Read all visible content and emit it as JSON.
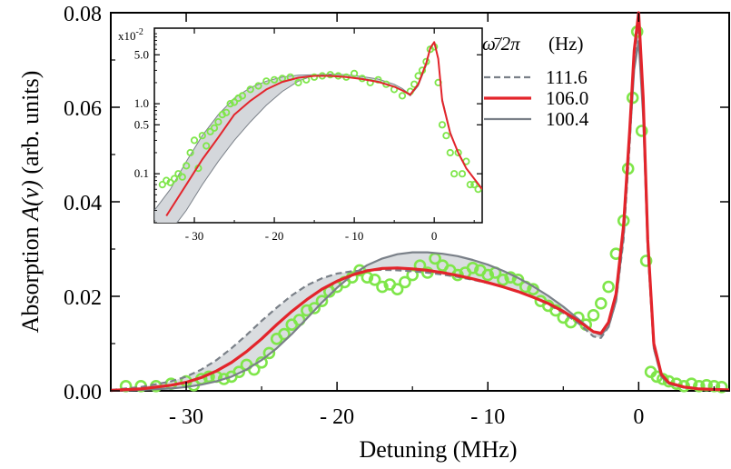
{
  "chart_data": {
    "type": "line",
    "main": {
      "xlabel": "Detuning (MHz)",
      "ylabel_prefix": "Absorption",
      "ylabel_symbol": "A(ν)",
      "ylabel_suffix": "(arb. units)",
      "xlim": [
        -35,
        6
      ],
      "ylim": [
        0,
        0.08
      ],
      "x_ticks": [
        -30,
        -20,
        -10,
        0
      ],
      "x_tick_labels": [
        "- 30",
        "- 20",
        "- 10",
        "0"
      ],
      "y_ticks": [
        0,
        0.02,
        0.04,
        0.06,
        0.08
      ],
      "y_tick_labels": [
        "0.00",
        "0.02",
        "0.04",
        "0.06",
        "0.08"
      ],
      "band_between": [
        "111.6",
        "100.4"
      ],
      "series": [
        {
          "name": "111.6",
          "style": "dashed",
          "color": "#7a8088",
          "x": [
            -35,
            -33,
            -31,
            -30,
            -29,
            -28,
            -27,
            -26,
            -25,
            -24,
            -23,
            -22,
            -21,
            -20,
            -19,
            -18,
            -17,
            -16,
            -15,
            -14,
            -13,
            -12,
            -11,
            -10,
            -9,
            -8,
            -7,
            -6,
            -5,
            -4,
            -3,
            -2.5,
            -2,
            -1.5,
            -1,
            -0.6,
            -0.3,
            0,
            0.3,
            0.6,
            1,
            1.5,
            2,
            3,
            4,
            6
          ],
          "y": [
            0.0002,
            0.0008,
            0.002,
            0.003,
            0.0045,
            0.0065,
            0.009,
            0.0118,
            0.0148,
            0.0176,
            0.0202,
            0.0223,
            0.0238,
            0.0248,
            0.0253,
            0.0255,
            0.0256,
            0.0255,
            0.0253,
            0.025,
            0.0246,
            0.0241,
            0.0235,
            0.0228,
            0.022,
            0.021,
            0.0198,
            0.0183,
            0.0165,
            0.0143,
            0.0115,
            0.0112,
            0.0135,
            0.019,
            0.032,
            0.052,
            0.07,
            0.078,
            0.06,
            0.03,
            0.009,
            0.003,
            0.0015,
            0.0007,
            0.0004,
            0.0002
          ]
        },
        {
          "name": "106.0",
          "style": "solid",
          "color": "#e3242b",
          "x": [
            -35,
            -33,
            -31,
            -30,
            -29,
            -28,
            -27,
            -26,
            -25,
            -24,
            -23,
            -22,
            -21,
            -20,
            -19,
            -18,
            -17,
            -16,
            -15,
            -14,
            -13,
            -12,
            -11,
            -10,
            -9,
            -8,
            -7,
            -6,
            -5,
            -4,
            -3,
            -2.5,
            -2,
            -1.5,
            -1,
            -0.6,
            -0.3,
            0,
            0.3,
            0.6,
            1,
            1.5,
            2,
            3,
            4,
            6
          ],
          "y": [
            0.0001,
            0.0004,
            0.0012,
            0.0018,
            0.0028,
            0.0042,
            0.006,
            0.0083,
            0.011,
            0.014,
            0.0168,
            0.0193,
            0.0215,
            0.0232,
            0.0245,
            0.0254,
            0.0259,
            0.026,
            0.0258,
            0.0255,
            0.025,
            0.0244,
            0.0237,
            0.0229,
            0.022,
            0.021,
            0.0198,
            0.0185,
            0.0168,
            0.0148,
            0.0125,
            0.0122,
            0.0145,
            0.0205,
            0.035,
            0.055,
            0.072,
            0.08,
            0.062,
            0.032,
            0.01,
            0.0035,
            0.0017,
            0.0008,
            0.0004,
            0.0002
          ]
        },
        {
          "name": "100.4",
          "style": "solid",
          "color": "#7a8088",
          "x": [
            -35,
            -33,
            -31,
            -30,
            -29,
            -28,
            -27,
            -26,
            -25,
            -24,
            -23,
            -22,
            -21,
            -20,
            -19,
            -18,
            -17,
            -16,
            -15,
            -14,
            -13,
            -12,
            -11,
            -10,
            -9,
            -8,
            -7,
            -6,
            -5,
            -4,
            -3,
            -2.5,
            -2,
            -1.5,
            -1,
            -0.6,
            -0.3,
            0,
            0.3,
            0.6,
            1,
            1.5,
            2,
            3,
            4,
            6
          ],
          "y": [
            0.0,
            0.0002,
            0.0005,
            0.0008,
            0.0013,
            0.002,
            0.003,
            0.0045,
            0.0065,
            0.009,
            0.012,
            0.0153,
            0.0187,
            0.0218,
            0.0245,
            0.0266,
            0.028,
            0.0289,
            0.0293,
            0.0293,
            0.029,
            0.0285,
            0.0277,
            0.0267,
            0.0254,
            0.0239,
            0.0221,
            0.0201,
            0.0178,
            0.0152,
            0.0125,
            0.0118,
            0.0135,
            0.019,
            0.033,
            0.053,
            0.068,
            0.074,
            0.058,
            0.03,
            0.009,
            0.003,
            0.0015,
            0.0007,
            0.0004,
            0.0002
          ]
        }
      ],
      "data_points": {
        "name": "measured",
        "color": "#7fe64a",
        "x": [
          -34,
          -33,
          -32,
          -31,
          -30,
          -29.5,
          -29,
          -28.5,
          -28,
          -27.5,
          -27,
          -26.5,
          -26,
          -25.5,
          -25,
          -24.5,
          -24,
          -23.5,
          -23,
          -22.5,
          -22,
          -21.5,
          -21,
          -20.5,
          -20,
          -19.5,
          -19,
          -18.5,
          -18,
          -17.5,
          -17,
          -16.5,
          -16,
          -15.5,
          -15,
          -14.5,
          -14,
          -13.5,
          -13,
          -12.5,
          -12,
          -11.5,
          -11,
          -10.5,
          -10,
          -9.5,
          -9,
          -8.5,
          -8,
          -7.5,
          -7,
          -6.5,
          -6,
          -5.5,
          -5,
          -4.5,
          -4,
          -3.5,
          -3,
          -2.5,
          -2,
          -1.5,
          -1,
          -0.7,
          -0.4,
          -0.1,
          0.2,
          0.5,
          0.8,
          1.2,
          1.6,
          2,
          2.5,
          3,
          3.5,
          4,
          4.5,
          5,
          5.5
        ],
        "y": [
          0.001,
          0.001,
          0.001,
          0.0015,
          0.002,
          0.0012,
          0.0025,
          0.003,
          0.003,
          0.0025,
          0.003,
          0.004,
          0.0055,
          0.0045,
          0.006,
          0.008,
          0.011,
          0.012,
          0.014,
          0.015,
          0.017,
          0.0175,
          0.019,
          0.021,
          0.022,
          0.023,
          0.024,
          0.0255,
          0.024,
          0.0235,
          0.022,
          0.0225,
          0.0215,
          0.023,
          0.0245,
          0.0265,
          0.025,
          0.028,
          0.0265,
          0.0255,
          0.0245,
          0.025,
          0.026,
          0.0255,
          0.0245,
          0.025,
          0.0235,
          0.024,
          0.0235,
          0.022,
          0.0215,
          0.019,
          0.018,
          0.017,
          0.0155,
          0.0145,
          0.0155,
          0.014,
          0.016,
          0.0185,
          0.022,
          0.029,
          0.036,
          0.047,
          0.062,
          0.076,
          0.055,
          0.0275,
          0.004,
          0.003,
          0.0025,
          0.002,
          0.0015,
          0.001,
          0.0015,
          0.001,
          0.0012,
          0.001,
          0.0008
        ]
      }
    },
    "inset": {
      "multiplier_label": "x10",
      "multiplier_exp": "-2",
      "yscale": "log",
      "xlim": [
        -35,
        6
      ],
      "ylim": [
        0.02,
        12
      ],
      "x_ticks": [
        -30,
        -20,
        -10,
        0
      ],
      "x_tick_labels": [
        "- 30",
        "- 20",
        "- 10",
        "0"
      ],
      "y_ticks": [
        0.1,
        0.5,
        1.0,
        5.0
      ],
      "y_tick_labels": [
        "0.1",
        "0.5",
        "1.0",
        "5.0"
      ],
      "band_x": [
        -35,
        -33,
        -31,
        -29,
        -27,
        -25,
        -23,
        -21,
        -19,
        -17,
        -15,
        -13,
        -11,
        -9,
        -7,
        -5,
        -4,
        -3,
        -2,
        -1,
        -0.5,
        0,
        0.5,
        1,
        2,
        3,
        4,
        6
      ],
      "band_high": [
        0.03,
        0.06,
        0.15,
        0.35,
        0.7,
        1.2,
        1.7,
        2.1,
        2.4,
        2.55,
        2.6,
        2.55,
        2.45,
        2.3,
        2.1,
        1.75,
        1.55,
        1.3,
        1.8,
        3.5,
        6,
        7.5,
        4.5,
        1.2,
        0.4,
        0.2,
        0.12,
        0.06
      ],
      "band_low": [
        0.01,
        0.015,
        0.03,
        0.07,
        0.15,
        0.3,
        0.55,
        0.95,
        1.5,
        2.1,
        2.55,
        2.65,
        2.6,
        2.45,
        2.25,
        1.9,
        1.65,
        1.35,
        1.8,
        3.5,
        6,
        7.5,
        4.5,
        1.2,
        0.4,
        0.2,
        0.12,
        0.06
      ],
      "red_curve": {
        "name": "106.0",
        "color": "#e3242b",
        "x": [
          -33.5,
          -31,
          -29,
          -27,
          -25,
          -23,
          -21,
          -19,
          -17,
          -15,
          -13,
          -11,
          -9,
          -7,
          -5,
          -4,
          -3,
          -2,
          -1,
          -0.5,
          0,
          0.5,
          1,
          2,
          3,
          4,
          6
        ],
        "y": [
          0.025,
          0.07,
          0.16,
          0.33,
          0.7,
          1.1,
          1.6,
          2.05,
          2.35,
          2.5,
          2.5,
          2.4,
          2.25,
          2.05,
          1.75,
          1.55,
          1.35,
          1.9,
          3.8,
          6.2,
          7.6,
          4.4,
          1.1,
          0.38,
          0.2,
          0.12,
          0.06
        ]
      },
      "data_points": {
        "name": "measured",
        "color": "#7fe64a",
        "x": [
          -34,
          -33.5,
          -33,
          -32.5,
          -32,
          -31.5,
          -31,
          -30.5,
          -30,
          -29.5,
          -29,
          -28.5,
          -28,
          -27.5,
          -27,
          -26.5,
          -26,
          -25.5,
          -25,
          -24.5,
          -24,
          -23,
          -22,
          -21,
          -20,
          -19,
          -18,
          -17,
          -16,
          -15,
          -14,
          -13,
          -12,
          -11,
          -10,
          -9,
          -8,
          -7,
          -6,
          -5,
          -4,
          -3,
          -2.5,
          -2,
          -1.5,
          -1,
          -0.5,
          0,
          0.5,
          1,
          1.5,
          2,
          2.5,
          3,
          3.5,
          4,
          4.5,
          5,
          5.5
        ],
        "y": [
          0.07,
          0.08,
          0.075,
          0.085,
          0.1,
          0.09,
          0.13,
          0.2,
          0.3,
          0.12,
          0.35,
          0.25,
          0.4,
          0.45,
          0.55,
          0.7,
          0.75,
          1.0,
          1.05,
          1.2,
          1.3,
          1.6,
          1.8,
          2.1,
          2.2,
          2.3,
          2.4,
          2.0,
          2.2,
          2.4,
          2.5,
          2.6,
          2.5,
          2.4,
          2.7,
          2.3,
          2.0,
          2.2,
          1.9,
          1.6,
          1.3,
          1.5,
          1.9,
          2.5,
          3.0,
          4.0,
          6.0,
          6.5,
          2.0,
          0.5,
          0.35,
          0.2,
          0.1,
          0.2,
          0.1,
          0.15,
          0.07,
          0.07,
          0.06
        ]
      }
    },
    "legend": {
      "title_symbol": "ω̄/2π",
      "title_unit": "(Hz)",
      "placement": "top-right",
      "entries": [
        "111.6",
        "106.0",
        "100.4"
      ]
    }
  }
}
